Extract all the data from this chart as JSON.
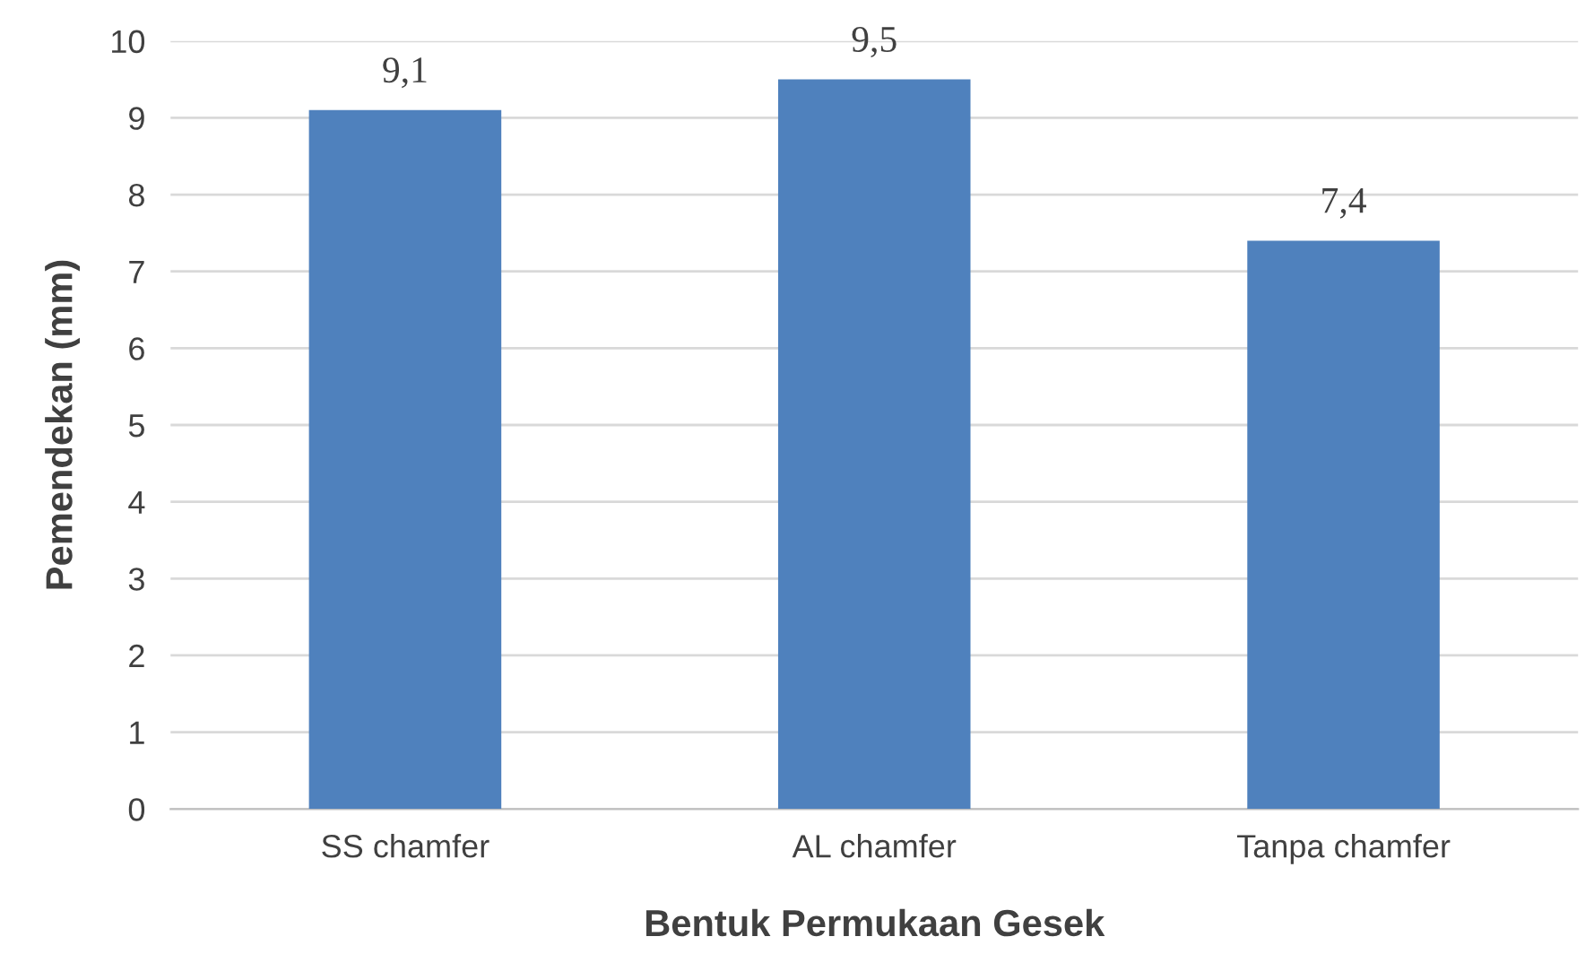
{
  "chart_data": {
    "type": "bar",
    "xlabel": "Bentuk Permukaan Gesek",
    "ylabel": "Pemendekan (mm)",
    "categories": [
      "SS chamfer",
      "AL chamfer",
      "Tanpa chamfer"
    ],
    "values": [
      9.1,
      9.5,
      7.4
    ],
    "value_labels": [
      "9,1",
      "9,5",
      "7,4"
    ],
    "color": "#4f81bd",
    "ylim": [
      0,
      10
    ],
    "yticks": [
      0,
      1,
      2,
      3,
      4,
      5,
      6,
      7,
      8,
      9,
      10
    ],
    "grid": "y",
    "legend": false
  }
}
